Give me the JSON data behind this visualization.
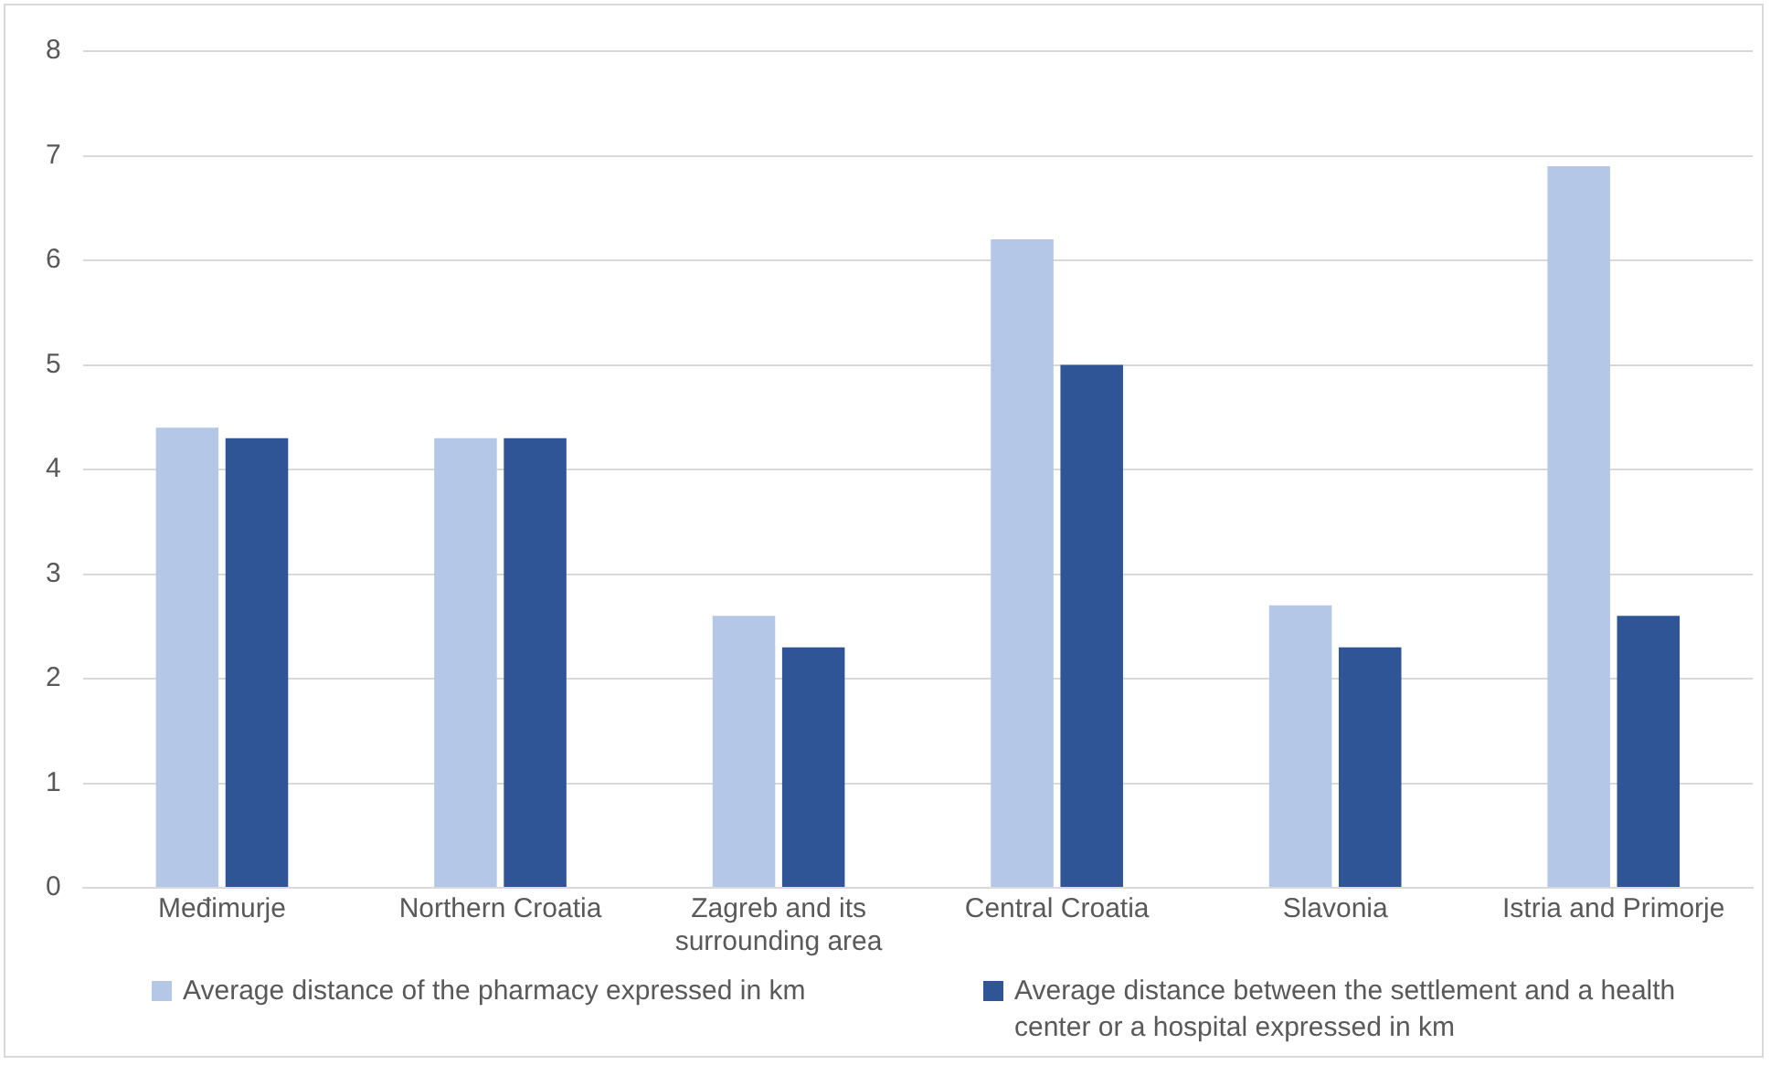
{
  "chart_data": {
    "type": "bar",
    "categories": [
      "Međimurje",
      "Northern Croatia",
      "Zagreb and its surrounding area",
      "Central Croatia",
      "Slavonia",
      "Istria and Primorje"
    ],
    "series": [
      {
        "name": "Average distance of the pharmacy expressed in km",
        "color": "#b4c7e7",
        "values": [
          4.4,
          4.3,
          2.6,
          6.2,
          2.7,
          6.9
        ]
      },
      {
        "name": "Average distance between the settlement and a health center or a hospital expressed in km",
        "color": "#2f5597",
        "values": [
          4.3,
          4.3,
          2.3,
          5.0,
          2.3,
          2.6
        ]
      }
    ],
    "ylim": [
      0,
      8
    ],
    "yticks": [
      0,
      1,
      2,
      3,
      4,
      5,
      6,
      7,
      8
    ],
    "grid": "y",
    "legend": "bottom"
  }
}
